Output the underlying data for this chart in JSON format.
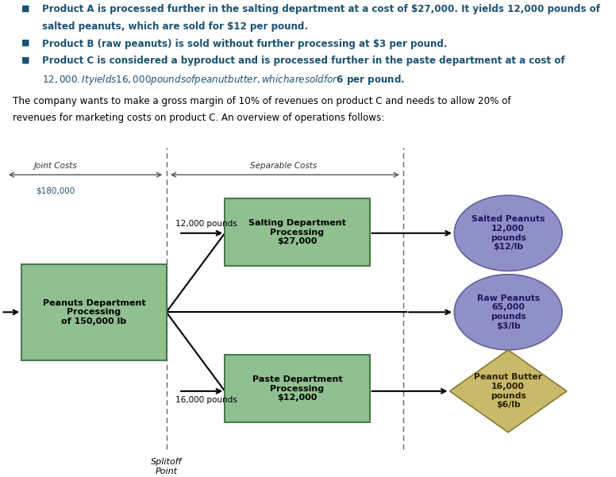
{
  "fig_width": 7.76,
  "fig_height": 6.01,
  "bg_color": "#ffffff",
  "bullet_lines": [
    [
      "Product A is processed further in the salting department at a cost of $27,000. It yields 12,000 pounds of",
      "salted peanuts, which are sold for $12 per pound."
    ],
    [
      "Product B (raw peanuts) is sold without further processing at $3 per pound."
    ],
    [
      "Product C is considered a byproduct and is processed further in the paste department at a cost of",
      "$12,000. It yields 16,000 pounds of peanut butter, which are sold for $6 per pound."
    ]
  ],
  "bullet_color": "#1a5276",
  "paragraph_line1": "The company wants to make a gross margin of 10% of revenues on product C and needs to allow 20% of",
  "paragraph_line2": "revenues for marketing costs on product C. An overview of operations follows:",
  "joint_costs_label": "Joint Costs",
  "joint_costs_value": "$180,000",
  "separable_costs_label": "Separable Costs",
  "splitoff_label": "Splitoff\nPoint",
  "peanuts_box_label": "Peanuts Department\nProcessing\nof 150,000 lb",
  "peanuts_box_color": "#90c090",
  "peanuts_box_edge": "#4a7a4a",
  "salting_box_label": "Salting Department\nProcessing\n$27,000",
  "salting_box_color": "#90c090",
  "salting_box_edge": "#4a7a4a",
  "paste_box_label": "Paste Department\nProcessing\n$12,000",
  "paste_box_color": "#90c090",
  "paste_box_edge": "#4a7a4a",
  "salted_label": "Salted Peanuts\n12,000\npounds\n$12/lb",
  "salted_color": "#9090c8",
  "salted_edge": "#6060a0",
  "raw_label": "Raw Peanuts\n65,000\npounds\n$3/lb",
  "raw_color": "#9090c8",
  "raw_edge": "#6060a0",
  "butter_label": "Peanut Butter\n16,000\npounds\n$6/lb",
  "butter_color": "#c8ba6a",
  "butter_edge": "#8a7a30",
  "label_12000": "12,000 pounds",
  "label_16000": "16,000 pounds",
  "arrow_color": "#000000",
  "line_color": "#555555",
  "text_color": "#000000",
  "dark_text": "#1a1a1a"
}
